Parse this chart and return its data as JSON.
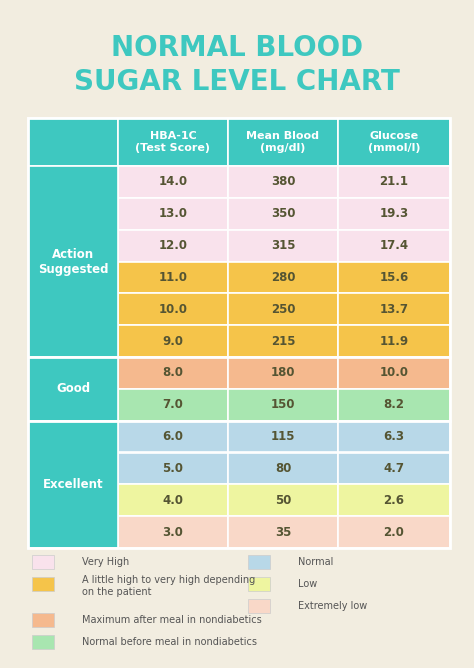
{
  "title_line1": "NORMAL BLOOD",
  "title_line2": "SUGAR LEVEL CHART",
  "title_color": "#3ec8c0",
  "background_color": "#f2ede0",
  "header_bg": "#3ec8c0",
  "left_col_bg": "#3ec8c0",
  "headers": [
    "HBA-1C\n(Test Score)",
    "Mean Blood\n(mg/dl)",
    "Glucose\n(mmol/l)"
  ],
  "row_groups": [
    {
      "label": "Action\nSuggested",
      "rows": [
        {
          "hba": "14.0",
          "blood": "380",
          "glucose": "21.1",
          "color": "#f9e2ec"
        },
        {
          "hba": "13.0",
          "blood": "350",
          "glucose": "19.3",
          "color": "#f9e2ec"
        },
        {
          "hba": "12.0",
          "blood": "315",
          "glucose": "17.4",
          "color": "#f9e2ec"
        },
        {
          "hba": "11.0",
          "blood": "280",
          "glucose": "15.6",
          "color": "#f5c44a"
        },
        {
          "hba": "10.0",
          "blood": "250",
          "glucose": "13.7",
          "color": "#f5c44a"
        },
        {
          "hba": "9.0",
          "blood": "215",
          "glucose": "11.9",
          "color": "#f5c44a"
        }
      ]
    },
    {
      "label": "Good",
      "rows": [
        {
          "hba": "8.0",
          "blood": "180",
          "glucose": "10.0",
          "color": "#f5b98e"
        },
        {
          "hba": "7.0",
          "blood": "150",
          "glucose": "8.2",
          "color": "#a8e6b0"
        }
      ]
    },
    {
      "label": "Excellent",
      "rows": [
        {
          "hba": "6.0",
          "blood": "115",
          "glucose": "6.3",
          "color": "#b8d8e8"
        },
        {
          "hba": "5.0",
          "blood": "80",
          "glucose": "4.7",
          "color": "#b8d8e8"
        },
        {
          "hba": "4.0",
          "blood": "50",
          "glucose": "2.6",
          "color": "#eef5a0"
        },
        {
          "hba": "3.0",
          "blood": "35",
          "glucose": "2.0",
          "color": "#f9d8c8"
        }
      ]
    }
  ],
  "legend_left": [
    {
      "color": "#f9e2ec",
      "label": "Very High"
    },
    {
      "color": "#f5c44a",
      "label": "A little high to very high depending\non the patient"
    },
    {
      "color": "#f5b98e",
      "label": "Maximum after meal in nondiabetics"
    },
    {
      "color": "#a8e6b0",
      "label": "Normal before meal in nondiabetics"
    }
  ],
  "legend_right": [
    {
      "color": "#b8d8e8",
      "label": "Normal"
    },
    {
      "color": "#eef5a0",
      "label": "Low"
    },
    {
      "color": "#f9d8c8",
      "label": "Extremely low"
    }
  ]
}
